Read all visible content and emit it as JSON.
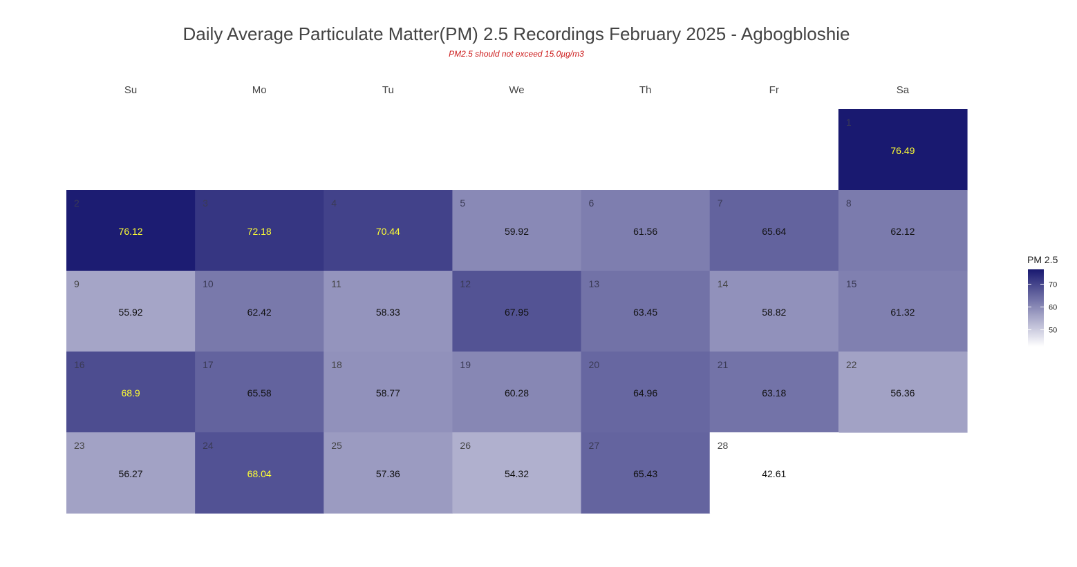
{
  "chart_data": {
    "type": "heatmap",
    "title": "Daily Average Particulate Matter(PM) 2.5 Recordings February 2025 -  Agbogbloshie",
    "subtitle": "PM2.5 should not exceed 15.0µg/m3",
    "weekdays": [
      "Su",
      "Mo",
      "Tu",
      "We",
      "Th",
      "Fr",
      "Sa"
    ],
    "first_weekday_index": 6,
    "days": [
      1,
      2,
      3,
      4,
      5,
      6,
      7,
      8,
      9,
      10,
      11,
      12,
      13,
      14,
      15,
      16,
      17,
      18,
      19,
      20,
      21,
      22,
      23,
      24,
      25,
      26,
      27,
      28
    ],
    "values": [
      76.49,
      76.12,
      72.18,
      70.44,
      59.92,
      61.56,
      65.64,
      62.12,
      55.92,
      62.42,
      58.33,
      67.95,
      63.45,
      58.82,
      61.32,
      68.9,
      65.58,
      58.77,
      60.28,
      64.96,
      63.18,
      56.36,
      56.27,
      68.04,
      57.36,
      54.32,
      65.43,
      42.61
    ],
    "value_labels": [
      "76.49",
      "76.12",
      "72.18",
      "70.44",
      "59.92",
      "61.56",
      "65.64",
      "62.12",
      "55.92",
      "62.42",
      "58.33",
      "67.95",
      "63.45",
      "58.82",
      "61.32",
      "68.9",
      "65.58",
      "58.77",
      "60.28",
      "64.96",
      "63.18",
      "56.36",
      "56.27",
      "68.04",
      "57.36",
      "54.32",
      "65.43",
      "42.61"
    ],
    "highlight_threshold": 68,
    "colors": {
      "low": "#ffffff",
      "high": "#191970",
      "highlight_text": "#ffff33",
      "normal_text": "#111111",
      "daynum_dark": "#444444",
      "subtitle": "#cc1a1a"
    },
    "value_range": [
      42.61,
      76.49
    ],
    "legend": {
      "title": "PM 2.5",
      "ticks": [
        50,
        60,
        70
      ],
      "tick_labels": [
        "50",
        "60",
        "70"
      ],
      "position": "right"
    },
    "grid": false
  }
}
